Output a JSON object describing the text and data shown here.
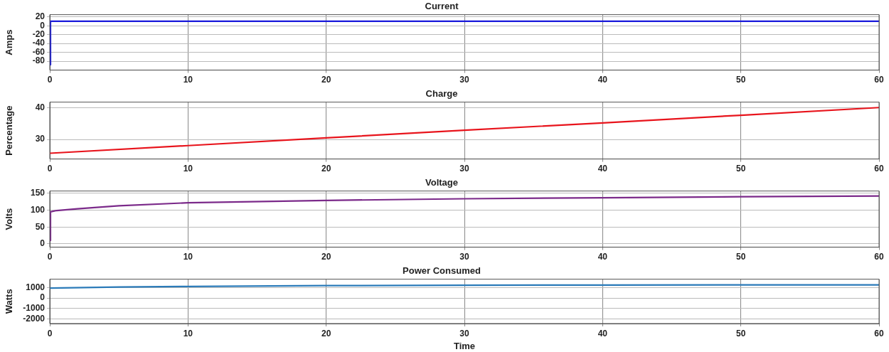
{
  "chart_data": [
    {
      "type": "line",
      "title": "Current",
      "ylabel": "Amps",
      "xlim": [
        0,
        60
      ],
      "xticks": [
        0,
        10,
        20,
        30,
        40,
        50,
        60
      ],
      "ylim": [
        -100,
        25
      ],
      "yticks": [
        -80,
        -60,
        -40,
        -20,
        0,
        20
      ],
      "grid": true,
      "legend": false,
      "marker": "none",
      "line_style": "solid",
      "x": [
        0,
        0.05,
        10,
        20,
        30,
        40,
        50,
        60
      ],
      "series": [
        {
          "color": "#1a1adb",
          "values": [
            -88,
            10,
            10,
            10,
            10,
            10,
            10,
            10
          ]
        }
      ]
    },
    {
      "type": "line",
      "title": "Charge",
      "ylabel": "Percentage",
      "xlim": [
        0,
        60
      ],
      "xticks": [
        0,
        10,
        20,
        30,
        40,
        50,
        60
      ],
      "ylim": [
        23.9,
        41.7
      ],
      "yticks": [
        30,
        40
      ],
      "grid": true,
      "legend": false,
      "marker": "none",
      "line_style": "solid",
      "x": [
        0,
        10,
        20,
        30,
        40,
        50,
        60
      ],
      "series": [
        {
          "color": "#e8141c",
          "values": [
            25.7,
            28.1,
            30.5,
            32.9,
            35.2,
            37.6,
            40
          ]
        }
      ]
    },
    {
      "type": "line",
      "title": "Voltage",
      "ylabel": "Volts",
      "xlim": [
        0,
        60
      ],
      "xticks": [
        0,
        10,
        20,
        30,
        40,
        50,
        60
      ],
      "ylim": [
        -10,
        157
      ],
      "yticks": [
        0,
        50,
        100,
        150
      ],
      "grid": true,
      "legend": false,
      "marker": "none",
      "line_style": "solid",
      "x": [
        0,
        0.05,
        0.5,
        2,
        5,
        10,
        20,
        30,
        40,
        50,
        60
      ],
      "series": [
        {
          "color": "#7b2a8a",
          "values": [
            10,
            95,
            99,
            104,
            113,
            122,
            129,
            134,
            137,
            140,
            142
          ]
        }
      ]
    },
    {
      "type": "line",
      "title": "Power Consumed",
      "xlabel": "Time",
      "ylabel": "Watts",
      "xlim": [
        0,
        60
      ],
      "xticks": [
        0,
        10,
        20,
        30,
        40,
        50,
        60
      ],
      "ylim": [
        -2450,
        1800
      ],
      "yticks": [
        -2000,
        -1000,
        0,
        1000
      ],
      "grid": true,
      "legend": false,
      "marker": "none",
      "line_style": "solid",
      "x": [
        0,
        5,
        10,
        20,
        30,
        40,
        50,
        60
      ],
      "series": [
        {
          "color": "#2b7bb9",
          "values": [
            950,
            1050,
            1100,
            1180,
            1220,
            1240,
            1250,
            1250
          ]
        }
      ]
    }
  ]
}
